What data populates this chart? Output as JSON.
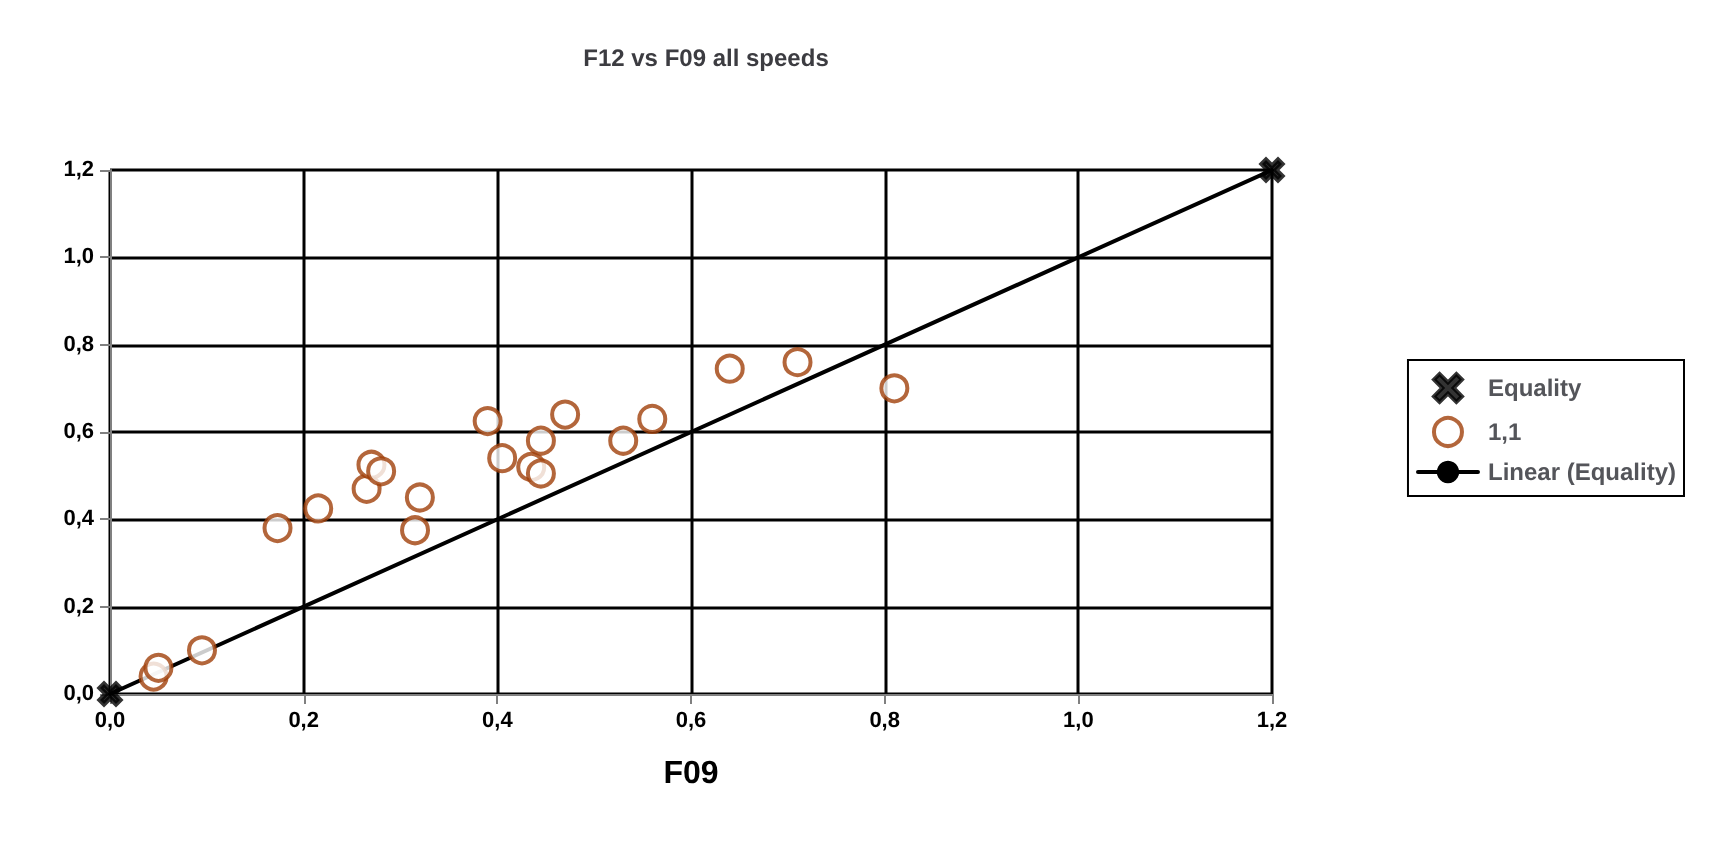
{
  "chart_data": {
    "type": "scatter",
    "title": "F12 vs F09 all speeds",
    "xlabel": "F09",
    "xlim": [
      0,
      1.2
    ],
    "ylim": [
      0,
      1.2
    ],
    "xticks": [
      {
        "value": 0,
        "label": "0,0"
      },
      {
        "value": 0.2,
        "label": "0,2"
      },
      {
        "value": 0.4,
        "label": "0,4"
      },
      {
        "value": 0.6,
        "label": "0,6"
      },
      {
        "value": 0.8,
        "label": "0,8"
      },
      {
        "value": 1,
        "label": "1,0"
      },
      {
        "value": 1.2,
        "label": "1,2"
      }
    ],
    "yticks": [
      {
        "value": 0,
        "label": "0,0"
      },
      {
        "value": 0.2,
        "label": "0,2"
      },
      {
        "value": 0.4,
        "label": "0,4"
      },
      {
        "value": 0.6,
        "label": "0,6"
      },
      {
        "value": 0.8,
        "label": "0,8"
      },
      {
        "value": 1,
        "label": "1,0"
      },
      {
        "value": 1.2,
        "label": "1,2"
      }
    ],
    "grid": true,
    "legend": "right",
    "series": [
      {
        "name": "Equality",
        "type": "scatter",
        "marker": "cross",
        "color": "#000000",
        "x": [
          0,
          1.2
        ],
        "values": [
          0,
          1.2
        ]
      },
      {
        "name": "1,1",
        "type": "scatter",
        "marker": "circle",
        "color": "#a0400a",
        "x": [
          0.045,
          0.05,
          0.095,
          0.173,
          0.215,
          0.265,
          0.27,
          0.28,
          0.315,
          0.32,
          0.39,
          0.405,
          0.435,
          0.445,
          0.445,
          0.47,
          0.53,
          0.56,
          0.64,
          0.71,
          0.81
        ],
        "values": [
          0.04,
          0.06,
          0.1,
          0.38,
          0.425,
          0.47,
          0.525,
          0.51,
          0.375,
          0.45,
          0.625,
          0.54,
          0.52,
          0.505,
          0.58,
          0.64,
          0.58,
          0.63,
          0.745,
          0.76,
          0.7
        ]
      },
      {
        "name": "Linear (Equality)",
        "type": "line",
        "marker": "none",
        "line_style": "solid",
        "color": "#000000",
        "x": [
          0,
          1.2
        ],
        "values": [
          0,
          1.2
        ]
      }
    ]
  }
}
